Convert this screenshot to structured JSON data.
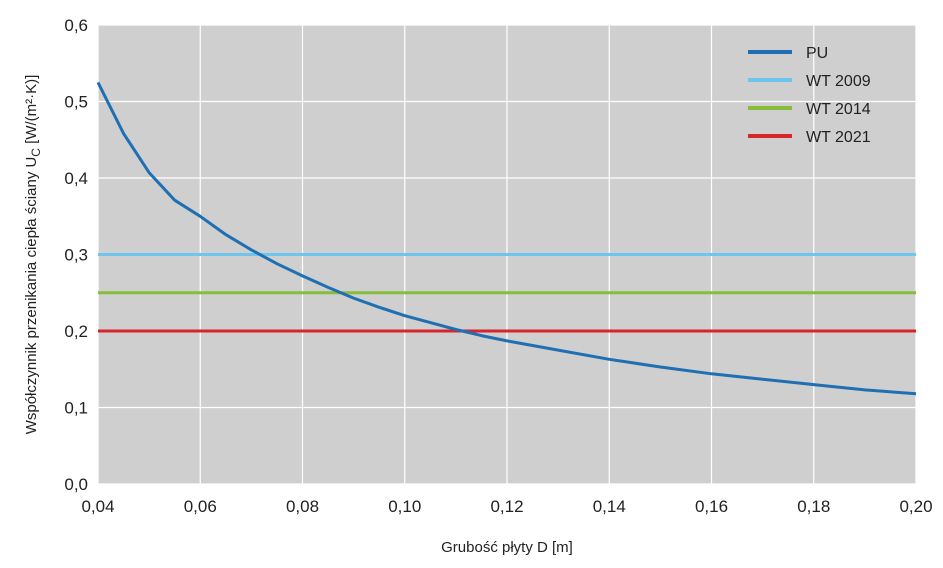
{
  "chart_data": {
    "type": "line",
    "xlabel": "Grubość płyty D [m]",
    "ylabel": {
      "main": "Współczynnik przenikania ciepła ściany U",
      "sub": "C",
      "unit": " [W/(m²·K)]"
    },
    "xlim": [
      0.04,
      0.2
    ],
    "ylim": [
      0.0,
      0.6
    ],
    "xticks": [
      0.04,
      0.06,
      0.08,
      0.1,
      0.12,
      0.14,
      0.16,
      0.18,
      0.2
    ],
    "xtick_labels": [
      "0,04",
      "0,06",
      "0,08",
      "0,10",
      "0,12",
      "0,14",
      "0,16",
      "0,18",
      "0,20"
    ],
    "yticks": [
      0.0,
      0.1,
      0.2,
      0.3,
      0.4,
      0.5,
      0.6
    ],
    "ytick_labels": [
      "0,0",
      "0,1",
      "0,2",
      "0,3",
      "0,4",
      "0,5",
      "0,6"
    ],
    "grid": true,
    "legend_position": "top-right",
    "plot_background": "#cfcfcf",
    "grid_color": "#ffffff",
    "series": [
      {
        "name": "PU",
        "color": "#1f6fb2",
        "x": [
          0.04,
          0.045,
          0.05,
          0.055,
          0.06,
          0.065,
          0.07,
          0.075,
          0.08,
          0.085,
          0.09,
          0.095,
          0.1,
          0.105,
          0.11,
          0.115,
          0.12,
          0.13,
          0.14,
          0.15,
          0.16,
          0.17,
          0.18,
          0.19,
          0.2
        ],
        "y": [
          0.525,
          0.458,
          0.407,
          0.371,
          0.35,
          0.326,
          0.306,
          0.288,
          0.272,
          0.257,
          0.243,
          0.231,
          0.22,
          0.211,
          0.202,
          0.194,
          0.187,
          0.175,
          0.163,
          0.153,
          0.144,
          0.137,
          0.13,
          0.123,
          0.118
        ]
      },
      {
        "name": "WT 2009",
        "color": "#6ec6ee",
        "x": [
          0.04,
          0.2
        ],
        "y": [
          0.3,
          0.3
        ]
      },
      {
        "name": "WT 2014",
        "color": "#86bd3a",
        "x": [
          0.04,
          0.2
        ],
        "y": [
          0.25,
          0.25
        ]
      },
      {
        "name": "WT 2021",
        "color": "#d7262b",
        "x": [
          0.04,
          0.2
        ],
        "y": [
          0.2,
          0.2
        ]
      }
    ]
  }
}
